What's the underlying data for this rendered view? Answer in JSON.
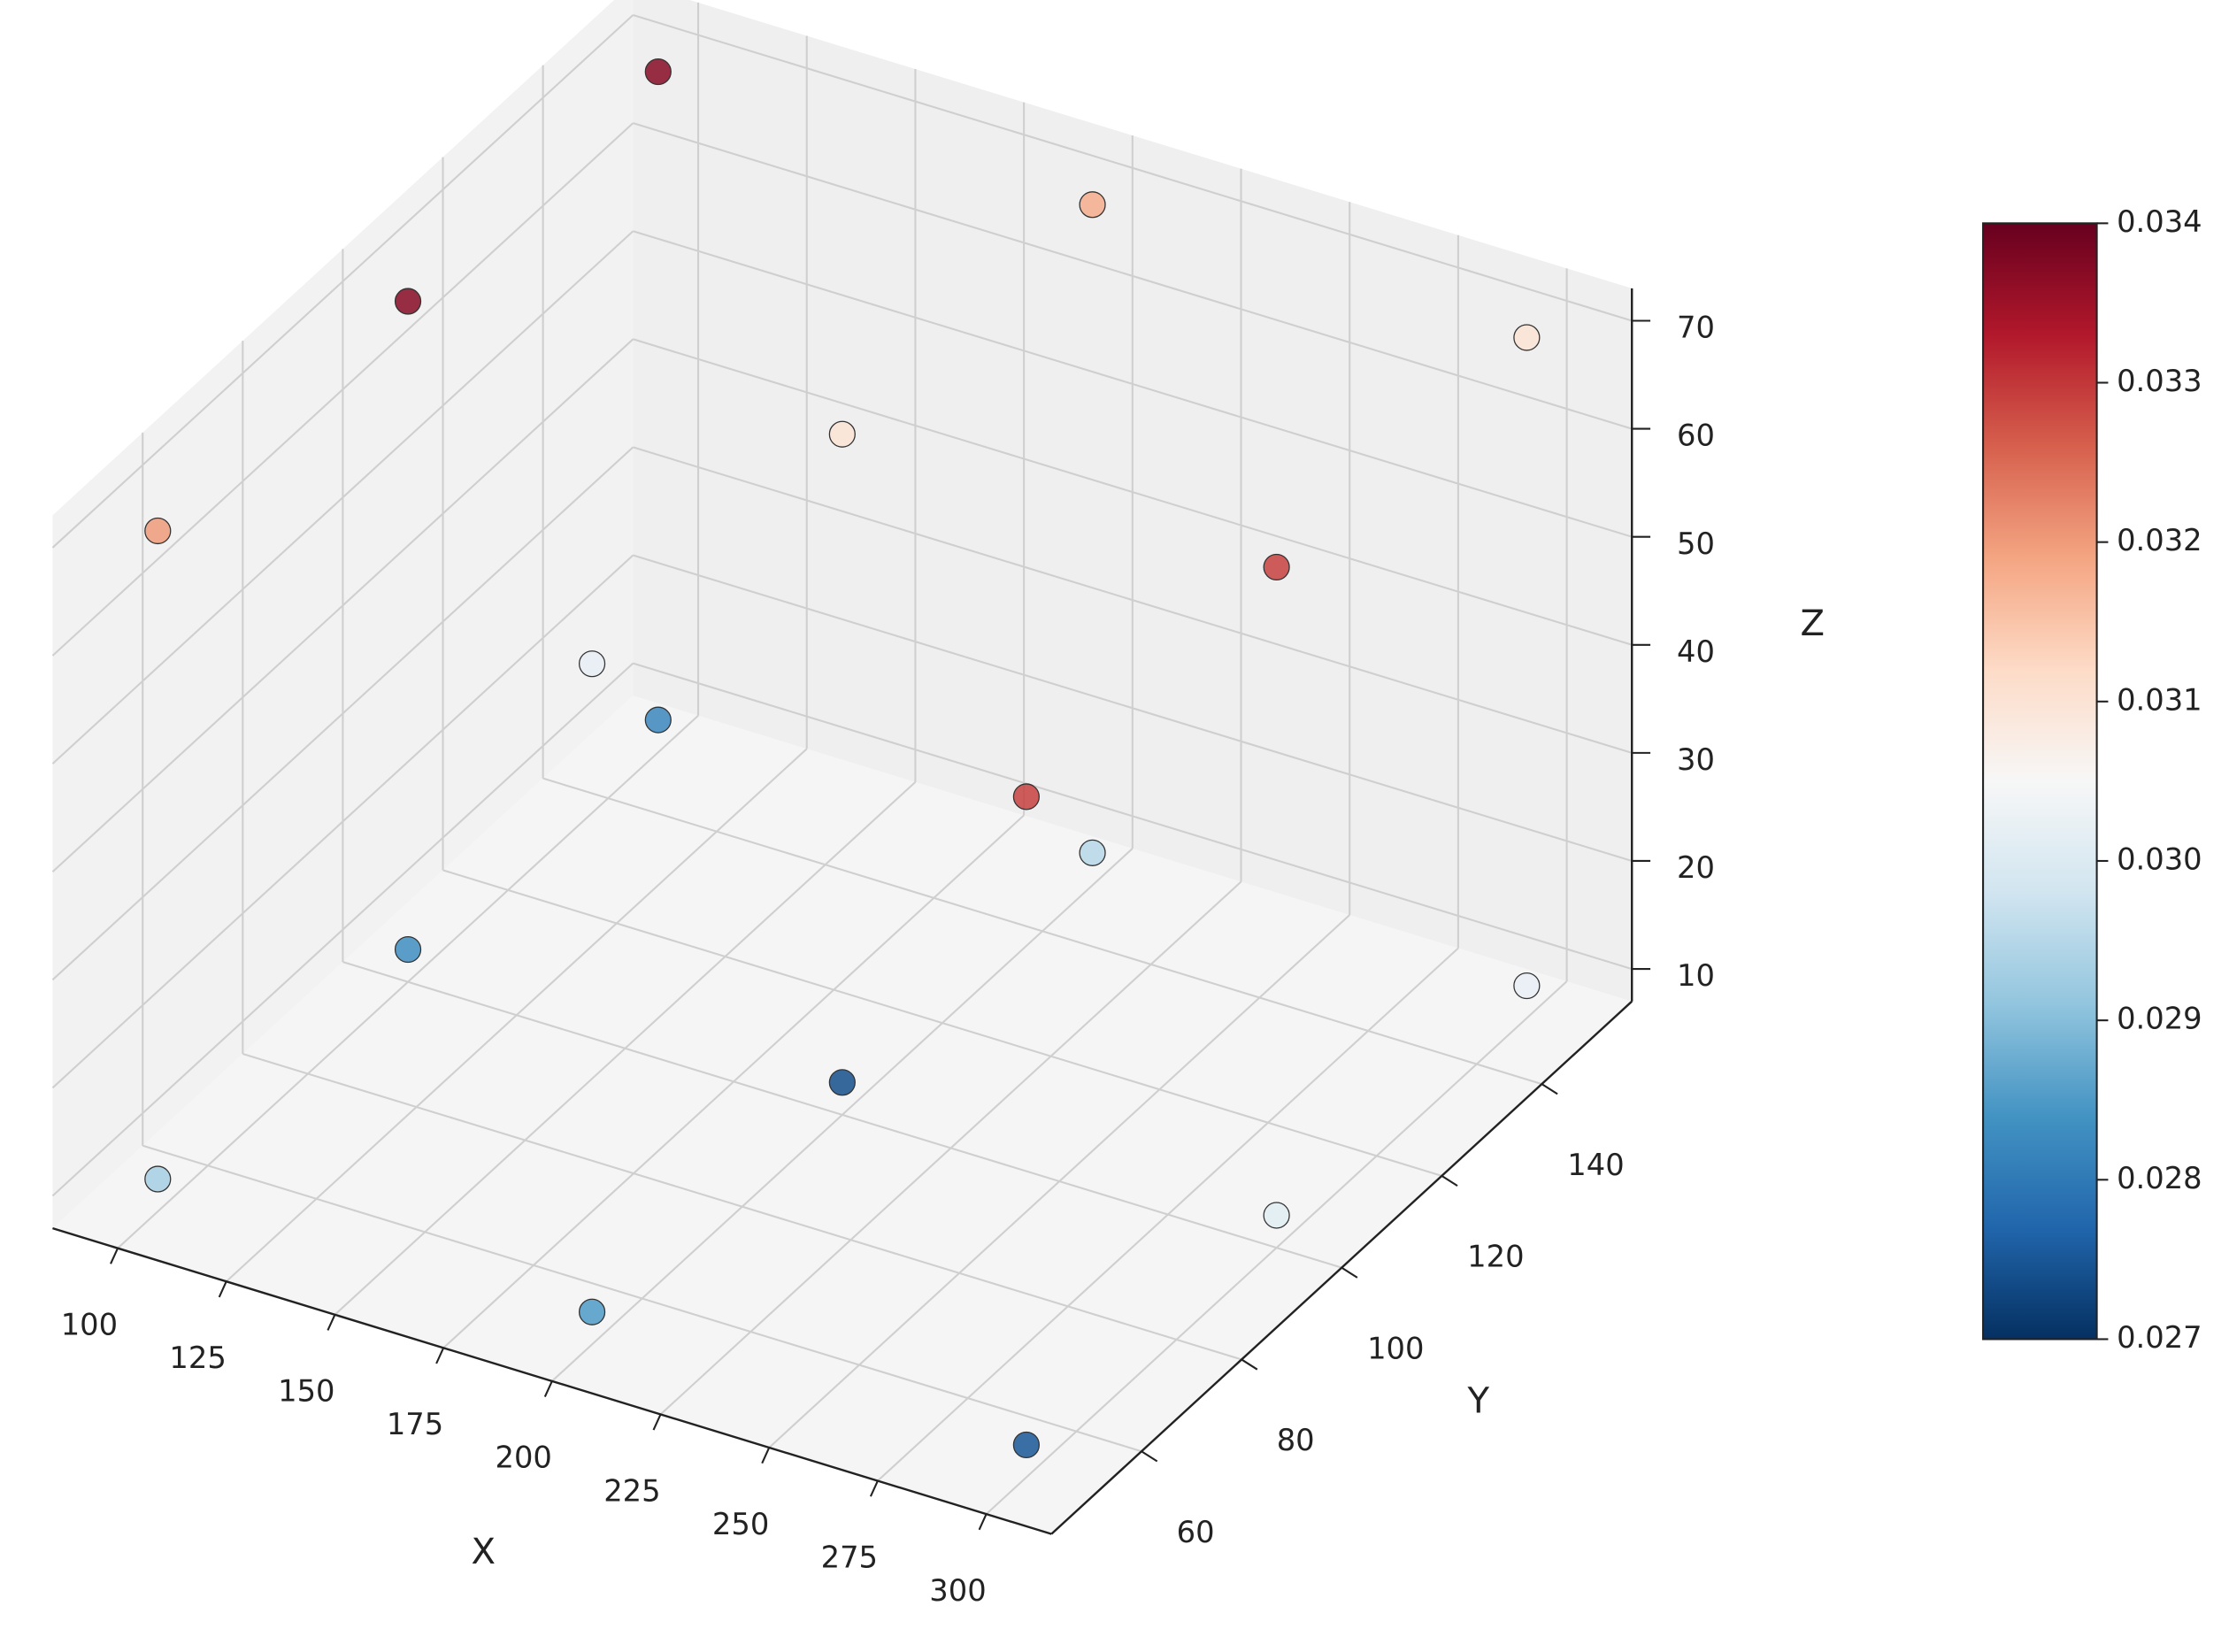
{
  "chart_data": {
    "type": "scatter3d",
    "x": [
      100,
      100,
      100,
      200,
      200,
      200,
      300,
      300,
      300,
      100,
      100,
      100,
      200,
      200,
      200,
      300,
      300,
      300
    ],
    "y": [
      50,
      100,
      150,
      50,
      100,
      150,
      50,
      100,
      150,
      50,
      100,
      150,
      50,
      100,
      150,
      50,
      100,
      150
    ],
    "z": [
      10,
      10,
      10,
      10,
      10,
      10,
      10,
      10,
      10,
      70,
      70,
      70,
      70,
      70,
      70,
      70,
      70,
      70
    ],
    "color_values": [
      0.0293,
      0.0283,
      0.0282,
      0.0285,
      0.0274,
      0.0295,
      0.0275,
      0.0301,
      0.0302,
      0.032,
      0.0337,
      0.0337,
      0.0302,
      0.031,
      0.0318,
      0.0329,
      0.0329,
      0.031
    ],
    "colormap": [
      "#053061",
      "#2166ac",
      "#4393c3",
      "#92c5de",
      "#d1e5f0",
      "#f7f7f7",
      "#fddbc7",
      "#f4a582",
      "#d6604d",
      "#b2182b",
      "#67001f"
    ],
    "clim": [
      0.027,
      0.034
    ],
    "colorbar_ticks": [
      0.027,
      0.028,
      0.029,
      {
        "value": 0.03,
        "label": "0.030"
      },
      0.031,
      0.032,
      0.033,
      0.034
    ],
    "xlabel": "X",
    "ylabel": "Y",
    "zlabel": "Z",
    "xlim": [
      85,
      315
    ],
    "ylim": [
      42,
      158
    ],
    "zlim": [
      7,
      73
    ],
    "xticks": [
      100,
      125,
      150,
      175,
      200,
      225,
      250,
      275,
      300
    ],
    "yticks": [
      60,
      80,
      100,
      120,
      140
    ],
    "zticks": [
      10,
      20,
      30,
      40,
      50,
      60,
      70
    ],
    "grid": true
  }
}
